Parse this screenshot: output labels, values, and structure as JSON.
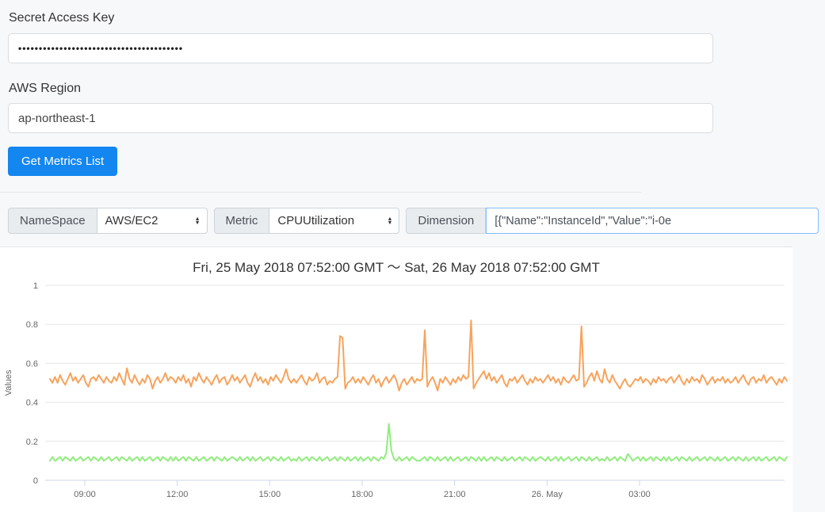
{
  "form": {
    "secret_label": "Secret Access Key",
    "secret_value": "••••••••••••••••••••••••••••••••••••••••",
    "region_label": "AWS Region",
    "region_value": "ap-northeast-1",
    "button_label": "Get Metrics List"
  },
  "metric_bar": {
    "namespace_label": "NameSpace",
    "namespace_value": "AWS/EC2",
    "metric_label": "Metric",
    "metric_value": "CPUUtilization",
    "dimension_label": "Dimension",
    "dimension_value": "[{\"Name\":\"InstanceId\",\"Value\":\"i-0e"
  },
  "chart_data": {
    "type": "line",
    "title": "Fri, 25 May 2018 07:52:00 GMT ～ Sat, 26 May 2018 07:52:00 GMT",
    "xlabel": "",
    "ylabel": "Values",
    "ylim": [
      0,
      1
    ],
    "yticks": [
      0,
      0.2,
      0.4,
      0.6,
      0.8,
      1
    ],
    "ytick_labels": [
      "0",
      "0.2",
      "0.4",
      "0.6",
      "0.8",
      "1"
    ],
    "xtick_labels": [
      "09:00",
      "12:00",
      "15:00",
      "18:00",
      "21:00",
      "26. May",
      "03:00"
    ],
    "x_start": "Fri, 25 May 2018 07:52:00 GMT",
    "x_interval_minutes": 5,
    "grid": true,
    "legend": "none",
    "grid_color": "#e6e6e6",
    "axis_color": "#ccd6eb",
    "label_color": "#666666",
    "series": [
      {
        "color": "#f7a35c",
        "values": [
          0.52,
          0.5,
          0.53,
          0.5,
          0.54,
          0.51,
          0.49,
          0.52,
          0.55,
          0.51,
          0.53,
          0.5,
          0.52,
          0.54,
          0.5,
          0.48,
          0.52,
          0.53,
          0.51,
          0.54,
          0.52,
          0.5,
          0.53,
          0.51,
          0.5,
          0.53,
          0.51,
          0.55,
          0.52,
          0.49,
          0.575,
          0.52,
          0.5,
          0.54,
          0.51,
          0.49,
          0.52,
          0.5,
          0.54,
          0.52,
          0.47,
          0.51,
          0.53,
          0.5,
          0.52,
          0.55,
          0.51,
          0.53,
          0.52,
          0.5,
          0.53,
          0.51,
          0.54,
          0.5,
          0.52,
          0.48,
          0.53,
          0.51,
          0.55,
          0.52,
          0.5,
          0.53,
          0.51,
          0.49,
          0.52,
          0.54,
          0.5,
          0.52,
          0.53,
          0.49,
          0.51,
          0.54,
          0.51,
          0.53,
          0.5,
          0.52,
          0.54,
          0.5,
          0.48,
          0.52,
          0.55,
          0.51,
          0.53,
          0.5,
          0.52,
          0.49,
          0.53,
          0.51,
          0.54,
          0.52,
          0.5,
          0.53,
          0.57,
          0.52,
          0.5,
          0.52,
          0.5,
          0.52,
          0.54,
          0.51,
          0.49,
          0.53,
          0.51,
          0.52,
          0.55,
          0.5,
          0.52,
          0.53,
          0.49,
          0.51,
          0.5,
          0.52,
          0.53,
          0.74,
          0.73,
          0.47,
          0.5,
          0.51,
          0.53,
          0.5,
          0.52,
          0.5,
          0.53,
          0.51,
          0.49,
          0.52,
          0.54,
          0.5,
          0.52,
          0.48,
          0.51,
          0.53,
          0.5,
          0.52,
          0.54,
          0.51,
          0.46,
          0.5,
          0.52,
          0.49,
          0.51,
          0.53,
          0.5,
          0.52,
          0.51,
          0.52,
          0.77,
          0.48,
          0.51,
          0.53,
          0.5,
          0.46,
          0.52,
          0.5,
          0.53,
          0.51,
          0.49,
          0.52,
          0.5,
          0.53,
          0.51,
          0.54,
          0.52,
          0.53,
          0.82,
          0.47,
          0.5,
          0.52,
          0.54,
          0.56,
          0.52,
          0.55,
          0.51,
          0.53,
          0.5,
          0.52,
          0.54,
          0.5,
          0.48,
          0.52,
          0.51,
          0.53,
          0.5,
          0.52,
          0.54,
          0.51,
          0.49,
          0.52,
          0.5,
          0.53,
          0.51,
          0.52,
          0.5,
          0.52,
          0.54,
          0.51,
          0.53,
          0.5,
          0.52,
          0.49,
          0.53,
          0.51,
          0.5,
          0.52,
          0.54,
          0.51,
          0.52,
          0.79,
          0.48,
          0.5,
          0.53,
          0.55,
          0.51,
          0.56,
          0.52,
          0.5,
          0.57,
          0.52,
          0.5,
          0.54,
          0.51,
          0.49,
          0.47,
          0.5,
          0.52,
          0.49,
          0.48,
          0.5,
          0.52,
          0.51,
          0.53,
          0.5,
          0.52,
          0.51,
          0.49,
          0.52,
          0.5,
          0.53,
          0.51,
          0.52,
          0.5,
          0.52,
          0.53,
          0.5,
          0.52,
          0.54,
          0.51,
          0.49,
          0.52,
          0.5,
          0.53,
          0.51,
          0.52,
          0.5,
          0.54,
          0.52,
          0.49,
          0.51,
          0.53,
          0.5,
          0.52,
          0.51,
          0.53,
          0.5,
          0.52,
          0.5,
          0.51,
          0.53,
          0.5,
          0.52,
          0.54,
          0.51,
          0.49,
          0.52,
          0.53,
          0.5,
          0.52,
          0.51,
          0.54,
          0.5,
          0.52,
          0.53,
          0.51,
          0.49,
          0.52,
          0.5,
          0.53,
          0.51
        ]
      },
      {
        "color": "#90ed7d",
        "values": [
          0.1,
          0.12,
          0.1,
          0.11,
          0.12,
          0.1,
          0.12,
          0.11,
          0.1,
          0.12,
          0.1,
          0.11,
          0.12,
          0.1,
          0.11,
          0.12,
          0.1,
          0.12,
          0.11,
          0.1,
          0.12,
          0.1,
          0.11,
          0.12,
          0.1,
          0.11,
          0.12,
          0.1,
          0.12,
          0.11,
          0.1,
          0.12,
          0.1,
          0.11,
          0.12,
          0.1,
          0.12,
          0.1,
          0.11,
          0.12,
          0.1,
          0.11,
          0.12,
          0.1,
          0.12,
          0.11,
          0.1,
          0.12,
          0.1,
          0.12,
          0.1,
          0.11,
          0.12,
          0.1,
          0.12,
          0.11,
          0.1,
          0.12,
          0.1,
          0.11,
          0.12,
          0.1,
          0.11,
          0.12,
          0.1,
          0.12,
          0.11,
          0.1,
          0.12,
          0.1,
          0.11,
          0.12,
          0.11,
          0.1,
          0.12,
          0.1,
          0.11,
          0.12,
          0.1,
          0.12,
          0.1,
          0.11,
          0.12,
          0.1,
          0.11,
          0.12,
          0.1,
          0.12,
          0.11,
          0.1,
          0.12,
          0.1,
          0.11,
          0.12,
          0.1,
          0.11,
          0.1,
          0.12,
          0.1,
          0.11,
          0.12,
          0.1,
          0.12,
          0.11,
          0.1,
          0.12,
          0.1,
          0.11,
          0.12,
          0.1,
          0.11,
          0.12,
          0.1,
          0.12,
          0.11,
          0.1,
          0.12,
          0.1,
          0.11,
          0.12,
          0.1,
          0.12,
          0.1,
          0.11,
          0.12,
          0.1,
          0.12,
          0.11,
          0.1,
          0.12,
          0.11,
          0.14,
          0.29,
          0.15,
          0.11,
          0.1,
          0.12,
          0.1,
          0.11,
          0.12,
          0.1,
          0.12,
          0.11,
          0.1,
          0.1,
          0.11,
          0.12,
          0.1,
          0.12,
          0.11,
          0.1,
          0.12,
          0.1,
          0.11,
          0.12,
          0.1,
          0.12,
          0.1,
          0.11,
          0.12,
          0.1,
          0.11,
          0.12,
          0.1,
          0.12,
          0.11,
          0.1,
          0.12,
          0.1,
          0.12,
          0.1,
          0.11,
          0.12,
          0.1,
          0.12,
          0.11,
          0.1,
          0.12,
          0.1,
          0.11,
          0.12,
          0.1,
          0.11,
          0.12,
          0.1,
          0.12,
          0.11,
          0.1,
          0.12,
          0.1,
          0.11,
          0.12,
          0.11,
          0.1,
          0.12,
          0.1,
          0.11,
          0.12,
          0.1,
          0.12,
          0.1,
          0.11,
          0.12,
          0.1,
          0.11,
          0.12,
          0.1,
          0.12,
          0.11,
          0.1,
          0.12,
          0.1,
          0.11,
          0.12,
          0.1,
          0.11,
          0.1,
          0.12,
          0.1,
          0.11,
          0.12,
          0.1,
          0.12,
          0.11,
          0.1,
          0.135,
          0.12,
          0.1,
          0.11,
          0.12,
          0.1,
          0.12,
          0.1,
          0.11,
          0.12,
          0.1,
          0.12,
          0.11,
          0.1,
          0.12,
          0.1,
          0.12,
          0.1,
          0.11,
          0.12,
          0.1,
          0.12,
          0.11,
          0.1,
          0.12,
          0.1,
          0.11,
          0.12,
          0.1,
          0.11,
          0.12,
          0.1,
          0.12,
          0.11,
          0.1,
          0.12,
          0.1,
          0.11,
          0.12,
          0.1,
          0.11,
          0.12,
          0.1,
          0.12,
          0.11,
          0.1,
          0.12,
          0.1,
          0.11,
          0.12,
          0.1,
          0.12,
          0.1,
          0.11,
          0.12,
          0.1,
          0.11,
          0.12,
          0.1,
          0.12,
          0.11,
          0.1,
          0.12
        ]
      }
    ]
  }
}
